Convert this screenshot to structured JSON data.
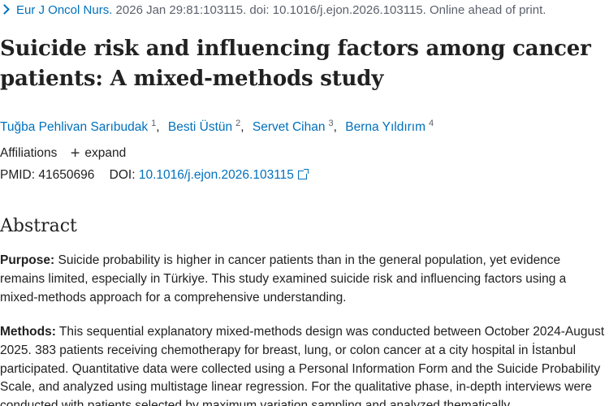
{
  "citation": {
    "journal": "Eur J Oncol Nurs.",
    "details": "2026 Jan 29:81:103115. doi: 10.1016/j.ejon.2026.103115. Online ahead of print."
  },
  "title": "Suicide risk and influencing factors among cancer patients: A mixed-methods study",
  "authors": [
    {
      "name": "Tuğba Pehlivan Sarıbudak",
      "sup": "1"
    },
    {
      "name": "Besti Üstün",
      "sup": "2"
    },
    {
      "name": "Servet Cihan",
      "sup": "3"
    },
    {
      "name": "Berna Yıldırım",
      "sup": "4"
    }
  ],
  "author_separator": ",",
  "affiliations": {
    "label": "Affiliations",
    "expand_label": "expand"
  },
  "ids": {
    "pmid_label": "PMID:",
    "pmid": "41650696",
    "doi_label": "DOI:",
    "doi": "10.1016/j.ejon.2026.103115"
  },
  "abstract": {
    "heading": "Abstract",
    "purpose_label": "Purpose:",
    "purpose_text": "Suicide probability is higher in cancer patients than in the general population, yet evidence remains limited, especially in Türkiye. This study examined suicide risk and influencing factors using a mixed-methods approach for a comprehensive understanding.",
    "methods_label": "Methods:",
    "methods_text": "This sequential explanatory mixed-methods design was conducted between October 2024-August 2025. 383 patients receiving chemotherapy for breast, lung, or colon cancer at a city hospital in İstanbul participated. Quantitative data were collected using a Personal Information Form and the Suicide Probability Scale, and analyzed using multistage linear regression. For the qualitative phase, in-depth interviews were conducted with patients selected by maximum variation sampling and analyzed thematically."
  }
}
